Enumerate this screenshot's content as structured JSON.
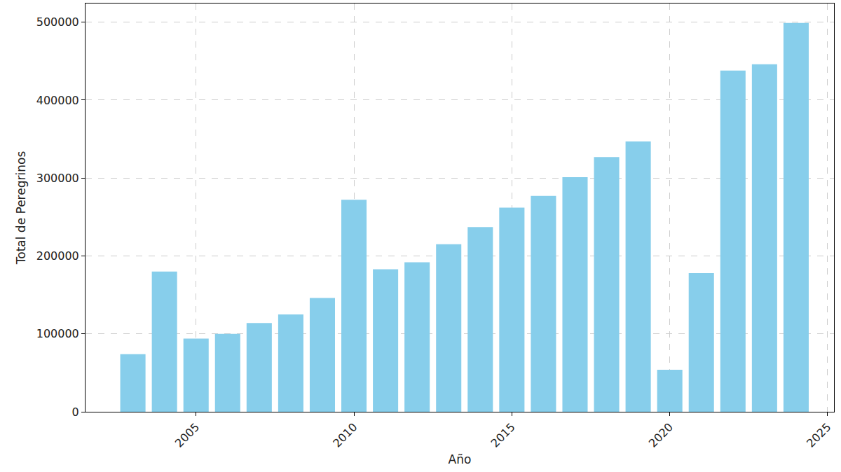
{
  "chart_data": {
    "type": "bar",
    "x_label": "Año",
    "y_label": "Total de Peregrinos",
    "x": [
      2003,
      2004,
      2005,
      2006,
      2007,
      2008,
      2009,
      2010,
      2011,
      2012,
      2013,
      2014,
      2015,
      2016,
      2017,
      2018,
      2019,
      2020,
      2021,
      2022,
      2023,
      2024
    ],
    "values": [
      74000,
      180000,
      94000,
      100000,
      114000,
      125000,
      146000,
      272000,
      183000,
      192000,
      215000,
      237000,
      262000,
      277000,
      301000,
      327000,
      347000,
      54000,
      178000,
      438000,
      446000,
      499000
    ],
    "color": "#87ceeb",
    "xlim": [
      2001.5,
      2025.2
    ],
    "xticks": [
      2005,
      2010,
      2015,
      2020,
      2025
    ],
    "ylim": [
      0,
      524000
    ],
    "yticks": [
      0,
      100000,
      200000,
      300000,
      400000,
      500000
    ],
    "grid": true
  }
}
